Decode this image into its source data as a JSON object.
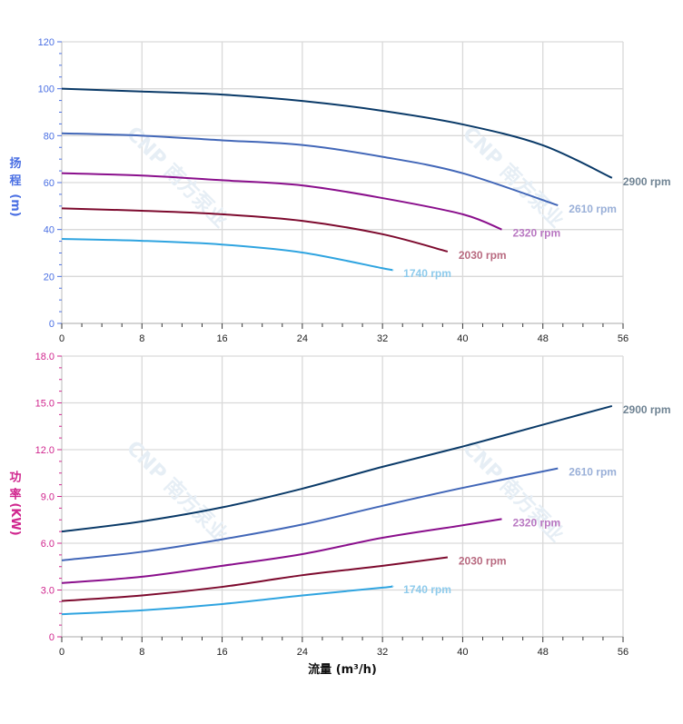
{
  "watermark": "CNP 南方泵业",
  "chart_data": [
    {
      "type": "line",
      "title": "",
      "ylabel_chars": [
        "扬",
        "程",
        "(m)"
      ],
      "xlabel": "",
      "xlim": [
        0,
        56
      ],
      "ylim": [
        0,
        120
      ],
      "xticks": [
        0,
        8,
        16,
        24,
        32,
        40,
        48,
        56
      ],
      "yticks": [
        0,
        20,
        40,
        60,
        80,
        100,
        120
      ],
      "ytick_labels": [
        "0",
        "20",
        "40",
        "60",
        "80",
        "100",
        "120"
      ],
      "axis_color": "#4a6fe3",
      "grid": true,
      "series": [
        {
          "name": "2900 rpm",
          "color": "#0a3a68",
          "label_color": "#6f8393",
          "x": [
            0,
            8,
            16,
            24,
            32,
            40,
            48,
            54.9
          ],
          "y": [
            100,
            98.8,
            97.5,
            94.8,
            90.6,
            84.8,
            75.9,
            62
          ]
        },
        {
          "name": "2610 rpm",
          "color": "#4267b8",
          "label_color": "#9ab0d8",
          "x": [
            0,
            8,
            16,
            24,
            32,
            40,
            49.5
          ],
          "y": [
            81,
            80,
            78,
            76,
            71,
            64,
            50.3
          ]
        },
        {
          "name": "2320 rpm",
          "color": "#8a0f8c",
          "label_color": "#b978c2",
          "x": [
            0,
            8,
            16,
            24,
            32,
            40,
            43.9
          ],
          "y": [
            64,
            63,
            61,
            58.8,
            53.4,
            46.5,
            40
          ]
        },
        {
          "name": "2030 rpm",
          "color": "#7d0a2e",
          "label_color": "#b86a80",
          "x": [
            0,
            8,
            16,
            24,
            32,
            38.5
          ],
          "y": [
            49,
            48,
            46.5,
            43.7,
            38,
            30.6
          ]
        },
        {
          "name": "1740 rpm",
          "color": "#2fa4e0",
          "label_color": "#8ecbec",
          "x": [
            0,
            8,
            16,
            24,
            32,
            33
          ],
          "y": [
            36,
            35.2,
            33.6,
            30.2,
            23.5,
            22.8
          ]
        }
      ]
    },
    {
      "type": "line",
      "title": "",
      "ylabel_chars": [
        "功",
        "率",
        "(KW)"
      ],
      "xlabel": "流量 (m³/h)",
      "xlim": [
        0,
        56
      ],
      "ylim": [
        0,
        18
      ],
      "xticks": [
        0,
        8,
        16,
        24,
        32,
        40,
        48,
        56
      ],
      "yticks": [
        0,
        3,
        6,
        9,
        12,
        15,
        18
      ],
      "ytick_labels": [
        "0",
        "3.0",
        "6.0",
        "9.0",
        "12.0",
        "15.0",
        "18.0"
      ],
      "axis_color": "#d0268e",
      "grid": true,
      "series": [
        {
          "name": "2900 rpm",
          "color": "#0a3a68",
          "label_color": "#6f8393",
          "x": [
            0,
            8,
            16,
            24,
            32,
            40,
            48,
            54.9
          ],
          "y": [
            6.75,
            7.4,
            8.3,
            9.5,
            10.9,
            12.2,
            13.6,
            14.8
          ]
        },
        {
          "name": "2610 rpm",
          "color": "#4267b8",
          "label_color": "#9ab0d8",
          "x": [
            0,
            8,
            16,
            24,
            32,
            40,
            49.5
          ],
          "y": [
            4.9,
            5.45,
            6.25,
            7.2,
            8.4,
            9.55,
            10.8
          ]
        },
        {
          "name": "2320 rpm",
          "color": "#8a0f8c",
          "label_color": "#b978c2",
          "x": [
            0,
            8,
            16,
            24,
            32,
            40,
            43.9
          ],
          "y": [
            3.45,
            3.85,
            4.55,
            5.3,
            6.35,
            7.15,
            7.55
          ]
        },
        {
          "name": "2030 rpm",
          "color": "#7d0a2e",
          "label_color": "#b86a80",
          "x": [
            0,
            8,
            16,
            24,
            32,
            38.5
          ],
          "y": [
            2.3,
            2.65,
            3.2,
            3.95,
            4.55,
            5.1
          ]
        },
        {
          "name": "1740 rpm",
          "color": "#2fa4e0",
          "label_color": "#8ecbec",
          "x": [
            0,
            8,
            16,
            24,
            32,
            33
          ],
          "y": [
            1.45,
            1.7,
            2.1,
            2.65,
            3.15,
            3.25
          ]
        }
      ]
    }
  ]
}
